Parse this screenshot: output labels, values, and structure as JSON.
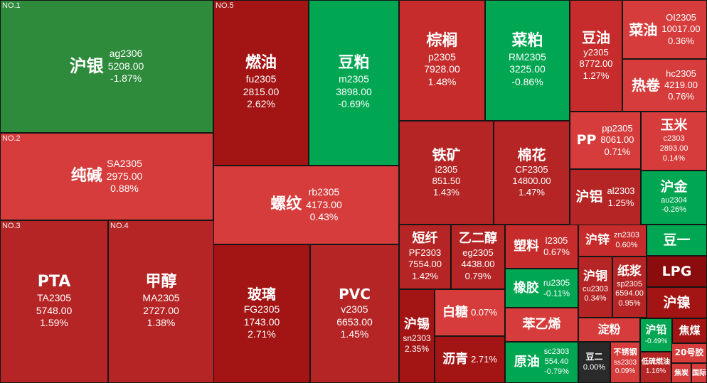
{
  "colors": {
    "dkgreen": "#2e8b3c",
    "green": "#00a651",
    "red": "#c62c2c",
    "red2": "#b52525",
    "dkred": "#a31414",
    "lred": "#d63c3c",
    "maroon": "#8a0c0c",
    "grey": "#2a2a2a"
  },
  "tiles": [
    {
      "id": "ag",
      "rank": "NO.1",
      "name": "沪银",
      "code": "ag2306",
      "price": "5208.00",
      "chg": "-1.87%"
    },
    {
      "id": "fu",
      "rank": "NO.5",
      "name": "燃油",
      "code": "fu2305",
      "price": "2815.00",
      "chg": "2.62%"
    },
    {
      "id": "m",
      "name": "豆粕",
      "code": "m2305",
      "price": "3898.00",
      "chg": "-0.69%"
    },
    {
      "id": "p",
      "name": "棕榈",
      "code": "p2305",
      "price": "7928.00",
      "chg": "1.48%"
    },
    {
      "id": "RM",
      "name": "菜粕",
      "code": "RM2305",
      "price": "3225.00",
      "chg": "-0.86%"
    },
    {
      "id": "y",
      "name": "豆油",
      "code": "y2305",
      "price": "8772.00",
      "chg": "1.27%"
    },
    {
      "id": "OI",
      "name": "菜油",
      "code": "OI2305",
      "price": "10017.00",
      "chg": "0.36%"
    },
    {
      "id": "hc",
      "name": "热卷",
      "code": "hc2305",
      "price": "4219.00",
      "chg": "0.76%"
    },
    {
      "id": "SA",
      "rank": "NO.2",
      "name": "纯碱",
      "code": "SA2305",
      "price": "2975.00",
      "chg": "0.88%"
    },
    {
      "id": "rb",
      "name": "螺纹",
      "code": "rb2305",
      "price": "4173.00",
      "chg": "0.43%"
    },
    {
      "id": "i",
      "name": "铁矿",
      "code": "i2305",
      "price": "851.50",
      "chg": "1.43%"
    },
    {
      "id": "CF",
      "name": "棉花",
      "code": "CF2305",
      "price": "14800.00",
      "chg": "1.47%"
    },
    {
      "id": "pp",
      "name": "PP",
      "code": "pp2305",
      "price": "8061.00",
      "chg": "0.71%"
    },
    {
      "id": "c",
      "name": "玉米",
      "code": "c2303",
      "price": "2893.00",
      "chg": "0.14%"
    },
    {
      "id": "al",
      "name": "沪铝",
      "code": "al2303",
      "chg": "1.25%"
    },
    {
      "id": "au",
      "name": "沪金",
      "code": "au2304",
      "chg": "-0.26%"
    },
    {
      "id": "TA",
      "rank": "NO.3",
      "name": "PTA",
      "code": "TA2305",
      "price": "5748.00",
      "chg": "1.59%"
    },
    {
      "id": "MA",
      "rank": "NO.4",
      "name": "甲醇",
      "code": "MA2305",
      "price": "2727.00",
      "chg": "1.38%"
    },
    {
      "id": "FG",
      "name": "玻璃",
      "code": "FG2305",
      "price": "1743.00",
      "chg": "2.71%"
    },
    {
      "id": "v",
      "name": "PVC",
      "code": "v2305",
      "price": "6653.00",
      "chg": "1.45%"
    },
    {
      "id": "PF",
      "name": "短纤",
      "code": "PF2303",
      "price": "7554.00",
      "chg": "1.42%"
    },
    {
      "id": "eg",
      "name": "乙二醇",
      "code": "eg2305",
      "price": "4438.00",
      "chg": "0.79%"
    },
    {
      "id": "l",
      "name": "塑料",
      "code": "l2305",
      "chg": "0.67%"
    },
    {
      "id": "zn",
      "name": "沪锌",
      "code": "zn2303",
      "chg": "0.60%"
    },
    {
      "id": "a",
      "name": "豆一"
    },
    {
      "id": "ru",
      "name": "橡胶",
      "code": "ru2305",
      "chg": "-0.11%"
    },
    {
      "id": "cu",
      "name": "沪铜",
      "code": "cu2303",
      "chg": "0.34%"
    },
    {
      "id": "sp",
      "name": "纸浆",
      "code": "sp2305",
      "price": "6594.00",
      "chg": "0.95%"
    },
    {
      "id": "LPG",
      "name": "LPG"
    },
    {
      "id": "ni",
      "name": "沪镍"
    },
    {
      "id": "sn",
      "name": "沪锡",
      "code": "sn2303",
      "chg": "2.35%"
    },
    {
      "id": "SR",
      "name": "白糖",
      "chg": "0.07%"
    },
    {
      "id": "eb",
      "name": "苯乙烯"
    },
    {
      "id": "jd",
      "name": "淀粉"
    },
    {
      "id": "pb",
      "name": "沪铅",
      "chg": "-0.49%"
    },
    {
      "id": "j",
      "name": "焦煤"
    },
    {
      "id": "bu",
      "name": "沥青",
      "chg": "2.71%"
    },
    {
      "id": "sc",
      "name": "原油",
      "code": "sc2303",
      "price": "554.40",
      "chg": "-0.79%"
    },
    {
      "id": "b",
      "name": "豆二",
      "chg": "0.00%"
    },
    {
      "id": "ss",
      "name": "不锈钢",
      "code": "ss2303",
      "chg": "0.09%"
    },
    {
      "id": "lu",
      "name": "低硫燃油",
      "chg": "1.16%"
    },
    {
      "id": "nr",
      "name": "20号胶"
    },
    {
      "id": "jj",
      "name": "焦炭"
    },
    {
      "id": "bc",
      "name": "国际"
    }
  ]
}
